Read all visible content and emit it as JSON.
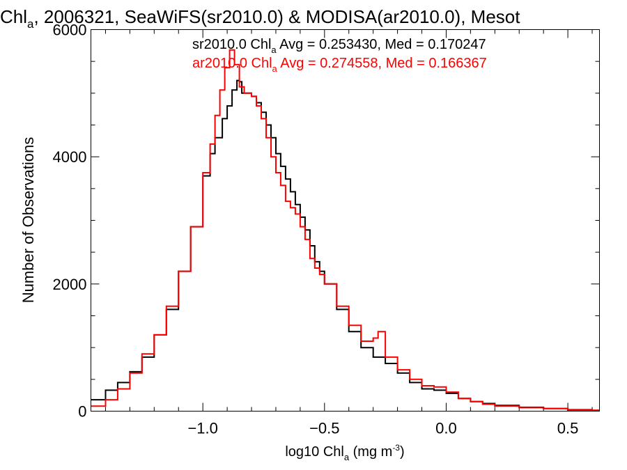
{
  "chart_data": {
    "type": "line",
    "title": {
      "pre": "Chl",
      "sub": "a",
      "post": ", 2006321, SeaWiFS(sr2010.0) & MODISA(ar2010.0), Mesot"
    },
    "xlabel": {
      "pre": "log10 Chl",
      "sub": "a",
      "post": " (mg m",
      "sup": "-3",
      "end": ")"
    },
    "ylabel": "Number of Observations",
    "xlim": [
      -1.46,
      0.63
    ],
    "ylim": [
      0,
      6000
    ],
    "x_ticks": [
      -1.0,
      -0.5,
      0.0,
      0.5
    ],
    "x_tick_labels": [
      "−1.0",
      "−0.5",
      "0.0",
      "0.5"
    ],
    "y_ticks": [
      0,
      2000,
      4000,
      6000
    ],
    "y_tick_labels": [
      "0",
      "2000",
      "4000",
      "6000"
    ],
    "step": "histogram",
    "legend": [
      {
        "pre": "sr2010.0 Chl",
        "sub": "a",
        "post": " Avg = 0.253430, Med = 0.170247",
        "color": "#000000"
      },
      {
        "pre": "ar2010.0 Chl",
        "sub": "a",
        "post": " Avg = 0.274558, Med = 0.166367",
        "color": "#ff0000"
      }
    ],
    "series": [
      {
        "color": "#000000",
        "x": [
          -1.46,
          -1.4,
          -1.35,
          -1.3,
          -1.25,
          -1.2,
          -1.15,
          -1.1,
          -1.05,
          -1.0,
          -0.97,
          -0.95,
          -0.92,
          -0.9,
          -0.88,
          -0.86,
          -0.85,
          -0.84,
          -0.82,
          -0.8,
          -0.78,
          -0.76,
          -0.74,
          -0.72,
          -0.7,
          -0.68,
          -0.66,
          -0.64,
          -0.62,
          -0.6,
          -0.58,
          -0.56,
          -0.54,
          -0.52,
          -0.5,
          -0.45,
          -0.4,
          -0.35,
          -0.3,
          -0.25,
          -0.2,
          -0.15,
          -0.1,
          -0.05,
          0.0,
          0.05,
          0.1,
          0.15,
          0.2,
          0.3,
          0.4,
          0.5,
          0.6,
          0.63
        ],
        "y": [
          180,
          330,
          450,
          620,
          850,
          1200,
          1600,
          2200,
          2900,
          3700,
          4050,
          4300,
          4600,
          4800,
          5050,
          5200,
          5180,
          5000,
          5000,
          4950,
          4850,
          4700,
          4500,
          4300,
          4050,
          3850,
          3650,
          3450,
          3250,
          3050,
          2850,
          2600,
          2350,
          2200,
          2000,
          1600,
          1250,
          1000,
          850,
          750,
          600,
          450,
          350,
          330,
          280,
          200,
          150,
          120,
          90,
          60,
          40,
          20,
          10,
          5
        ]
      },
      {
        "color": "#ff0000",
        "x": [
          -1.46,
          -1.4,
          -1.35,
          -1.3,
          -1.25,
          -1.2,
          -1.15,
          -1.1,
          -1.05,
          -1.0,
          -0.97,
          -0.95,
          -0.93,
          -0.91,
          -0.89,
          -0.87,
          -0.85,
          -0.83,
          -0.8,
          -0.78,
          -0.76,
          -0.74,
          -0.72,
          -0.7,
          -0.68,
          -0.66,
          -0.64,
          -0.62,
          -0.6,
          -0.58,
          -0.56,
          -0.54,
          -0.52,
          -0.5,
          -0.45,
          -0.4,
          -0.35,
          -0.3,
          -0.28,
          -0.25,
          -0.2,
          -0.15,
          -0.1,
          -0.05,
          0.0,
          0.05,
          0.1,
          0.15,
          0.2,
          0.3,
          0.4,
          0.5,
          0.6,
          0.63
        ],
        "y": [
          80,
          180,
          350,
          600,
          900,
          1200,
          1650,
          2200,
          2900,
          3750,
          4200,
          4650,
          5050,
          5400,
          5680,
          5450,
          5100,
          5000,
          4950,
          4800,
          4600,
          4300,
          4000,
          3750,
          3550,
          3300,
          3200,
          3100,
          2900,
          2700,
          2400,
          2250,
          2150,
          2000,
          1650,
          1350,
          1100,
          1150,
          1250,
          850,
          650,
          500,
          400,
          380,
          300,
          200,
          150,
          110,
          80,
          55,
          40,
          25,
          15,
          5
        ]
      }
    ]
  }
}
